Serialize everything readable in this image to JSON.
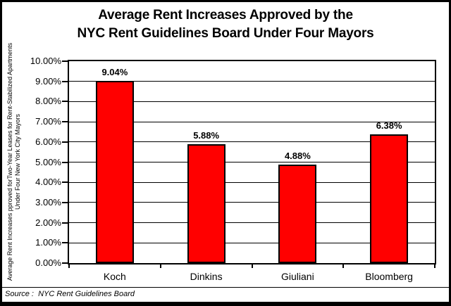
{
  "title": {
    "line1": "Average Rent Increases Approved by the",
    "line2": "NYC Rent Guidelines Board Under Four Mayors"
  },
  "chart_data": {
    "type": "bar",
    "title": "Average Rent Increases Approved by the NYC Rent Guidelines Board Under Four Mayors",
    "categories": [
      "Koch",
      "Dinkins",
      "Giuliani",
      "Bloomberg"
    ],
    "values": [
      9.04,
      5.88,
      4.88,
      6.38
    ],
    "value_labels": [
      "9.04%",
      "5.88%",
      "4.88%",
      "6.38%"
    ],
    "xlabel": "",
    "ylabel_line1": "Average Rent Increases pproved forTwo-Year Leases for Rent-Stabilized Apartments",
    "ylabel_line2": "Under Four New York City Mayors",
    "ylim": [
      0,
      10
    ],
    "ytick_step": 1,
    "ytick_labels": [
      "0.00%",
      "1.00%",
      "2.00%",
      "3.00%",
      "4.00%",
      "5.00%",
      "6.00%",
      "7.00%",
      "8.00%",
      "9.00%",
      "10.00%"
    ],
    "grid": "horizontal",
    "legend": "none",
    "bar_color": "#FF0000",
    "bar_border_color": "#000000"
  },
  "source": {
    "text": "Source :  NYC Rent Guidelines Board"
  },
  "colors": {
    "background": "#FFFFFF",
    "border": "#000000",
    "bar": "#FF0000"
  }
}
